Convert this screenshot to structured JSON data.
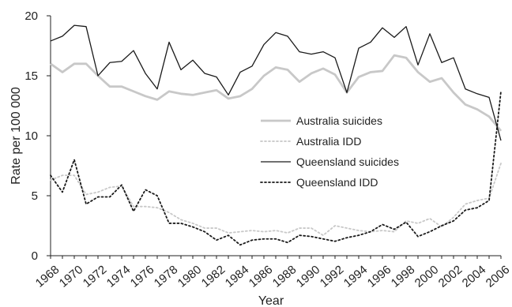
{
  "chart_data": {
    "type": "line",
    "xlabel": "Year",
    "ylabel": "Rate per 100 000",
    "ylim": [
      0,
      20
    ],
    "xlim": [
      1968,
      2006
    ],
    "yticks": [
      "0",
      "5",
      "10",
      "15",
      "20"
    ],
    "xticks": [
      "1968",
      "1970",
      "1972",
      "1974",
      "1976",
      "1978",
      "1980",
      "1982",
      "1984",
      "1986",
      "1988",
      "1990",
      "1992",
      "1994",
      "1996",
      "1998",
      "2000",
      "2002",
      "2004",
      "2006"
    ],
    "grid": false,
    "legend_position": "center-right",
    "x": [
      1968,
      1969,
      1970,
      1971,
      1972,
      1973,
      1974,
      1975,
      1976,
      1977,
      1978,
      1979,
      1980,
      1981,
      1982,
      1983,
      1984,
      1985,
      1986,
      1987,
      1988,
      1989,
      1990,
      1991,
      1992,
      1993,
      1994,
      1995,
      1996,
      1997,
      1998,
      1999,
      2000,
      2001,
      2002,
      2003,
      2004,
      2005,
      2006
    ],
    "series": [
      {
        "name": "Australia suicides",
        "color": "#c8c8c8",
        "style": "solid",
        "values": [
          16.0,
          15.3,
          16.0,
          16.0,
          15.0,
          14.1,
          14.1,
          13.7,
          13.3,
          13.0,
          13.7,
          13.5,
          13.4,
          13.6,
          13.8,
          13.1,
          13.3,
          13.9,
          15.0,
          15.7,
          15.5,
          14.5,
          15.2,
          15.6,
          15.1,
          13.6,
          14.9,
          15.3,
          15.4,
          16.7,
          16.5,
          15.3,
          14.5,
          14.8,
          13.6,
          12.6,
          12.2,
          11.6,
          10.4
        ]
      },
      {
        "name": "Australia IDD",
        "color": "#c8c8c8",
        "style": "dotted",
        "values": [
          6.3,
          6.7,
          6.7,
          5.1,
          5.3,
          5.7,
          5.8,
          4.1,
          4.1,
          4.0,
          3.6,
          3.0,
          2.7,
          2.3,
          2.3,
          1.9,
          2.0,
          2.1,
          2.0,
          2.1,
          1.9,
          2.3,
          2.3,
          1.7,
          2.5,
          2.3,
          2.1,
          2.0,
          2.1,
          2.0,
          2.9,
          2.7,
          3.1,
          2.4,
          3.2,
          4.3,
          4.6,
          4.8,
          7.7
        ]
      },
      {
        "name": "Queensland suicides",
        "color": "#1a1a1a",
        "style": "solid",
        "values": [
          17.9,
          18.3,
          19.2,
          19.1,
          15.0,
          16.1,
          16.2,
          17.1,
          15.2,
          13.9,
          17.8,
          15.5,
          16.3,
          15.2,
          14.9,
          13.4,
          15.3,
          15.8,
          17.6,
          18.6,
          18.3,
          17.0,
          16.8,
          17.0,
          16.5,
          13.6,
          17.3,
          17.8,
          19.0,
          18.2,
          19.1,
          15.9,
          18.5,
          16.1,
          16.5,
          13.9,
          13.5,
          13.2,
          9.6
        ]
      },
      {
        "name": "Queensland IDD",
        "color": "#1a1a1a",
        "style": "dotted",
        "values": [
          6.7,
          5.3,
          8.0,
          4.3,
          4.9,
          4.9,
          5.9,
          3.7,
          5.5,
          5.0,
          2.7,
          2.7,
          2.4,
          2.0,
          1.3,
          1.7,
          0.9,
          1.3,
          1.4,
          1.4,
          1.1,
          1.7,
          1.6,
          1.4,
          1.2,
          1.5,
          1.7,
          2.0,
          2.6,
          2.2,
          2.8,
          1.6,
          2.0,
          2.5,
          2.9,
          3.8,
          4.0,
          4.6,
          13.7
        ]
      }
    ]
  }
}
